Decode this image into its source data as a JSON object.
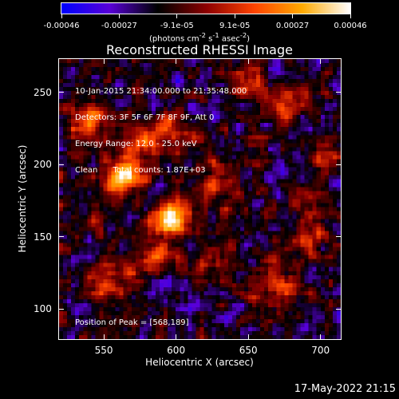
{
  "colorbar": {
    "ticks": [
      "-0.00046",
      "-0.00027",
      "-9.1e-05",
      "9.1e-05",
      "0.00027",
      "0.00046"
    ],
    "unit_prefix": "(photons cm",
    "unit_sup1": "-2",
    "unit_mid": " s",
    "unit_sup2": "-1",
    "unit_mid2": " asec",
    "unit_sup3": "-2",
    "unit_suffix": ")",
    "colors": [
      "#0000ff",
      "#5a00d8",
      "#000000",
      "#8c0000",
      "#ff4400",
      "#ffaa00",
      "#ffffff"
    ]
  },
  "title": "Reconstructed RHESSI Image",
  "info": {
    "line1": "10-Jan-2015 21:34:00.000 to 21:35:48.000",
    "line2": "Detectors: 3F 5F 6F 7F 8F 9F, Att 0",
    "line3": "Energy Range: 12.0 - 25.0 keV",
    "line4": "Clean      Total counts: 1.87E+03",
    "peak": "Position of Peak = [568,189]"
  },
  "chart_data": {
    "type": "heatmap",
    "title": "Reconstructed RHESSI Image",
    "xlabel": "Heliocentric X (arcsec)",
    "ylabel": "Heliocentric Y (arcsec)",
    "xlim": [
      519,
      714
    ],
    "ylim": [
      79,
      273
    ],
    "xticks": [
      "550",
      "600",
      "650",
      "700"
    ],
    "xtick_values": [
      550,
      600,
      650,
      700
    ],
    "yticks": [
      "100",
      "150",
      "200",
      "250"
    ],
    "ytick_values": [
      100,
      150,
      200,
      250
    ],
    "zlim": [
      -0.00046,
      0.00046
    ],
    "peak": [
      568,
      189
    ],
    "sources": [
      {
        "x": 563,
        "y": 192,
        "amp": 1.0,
        "sigma": 8
      },
      {
        "x": 597,
        "y": 162,
        "amp": 1.05,
        "sigma": 9
      },
      {
        "x": 577,
        "y": 215,
        "amp": 0.55,
        "sigma": 10
      },
      {
        "x": 600,
        "y": 220,
        "amp": 0.45,
        "sigma": 9
      },
      {
        "x": 540,
        "y": 230,
        "amp": 0.5,
        "sigma": 12
      },
      {
        "x": 630,
        "y": 190,
        "amp": 0.45,
        "sigma": 10
      },
      {
        "x": 675,
        "y": 240,
        "amp": 0.45,
        "sigma": 9
      },
      {
        "x": 690,
        "y": 150,
        "amp": 0.45,
        "sigma": 10
      },
      {
        "x": 670,
        "y": 115,
        "amp": 0.5,
        "sigma": 11
      },
      {
        "x": 555,
        "y": 120,
        "amp": 0.45,
        "sigma": 10
      },
      {
        "x": 585,
        "y": 135,
        "amp": 0.4,
        "sigma": 9
      },
      {
        "x": 625,
        "y": 130,
        "amp": 0.35,
        "sigma": 9
      },
      {
        "x": 650,
        "y": 255,
        "amp": 0.35,
        "sigma": 9
      },
      {
        "x": 705,
        "y": 205,
        "amp": 0.35,
        "sigma": 8
      },
      {
        "x": 540,
        "y": 160,
        "amp": 0.25,
        "sigma": 8
      }
    ]
  },
  "footer": "17-May-2022 21:15"
}
